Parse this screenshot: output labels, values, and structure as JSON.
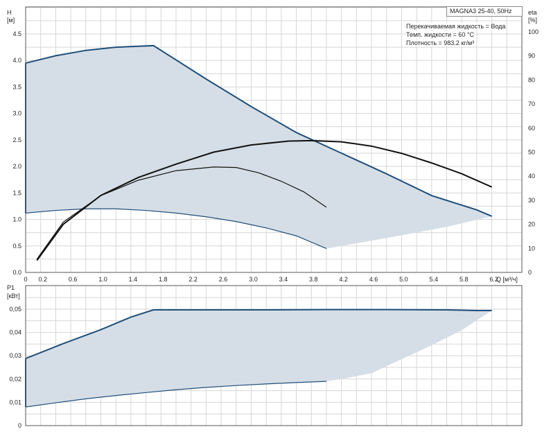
{
  "chart_data": [
    {
      "type": "line",
      "title": "MAGNA3 25-40, 50Hz",
      "xlabel": "Q [м³/ч]",
      "ylabel": "H [м]",
      "y2label": "eta [%]",
      "xlim": [
        0,
        6.6
      ],
      "ylim": [
        0,
        5.5
      ],
      "y2lim": [
        0,
        110
      ],
      "x_ticks": [
        "0",
        "0.2",
        "0.6",
        "1.0",
        "1.4",
        "1.8",
        "2.2",
        "2.6",
        "3.0",
        "3.4",
        "3.8",
        "4.2",
        "4.6",
        "5.0",
        "5.4",
        "5.8",
        "6.2"
      ],
      "y_ticks": [
        "0.0",
        "0.5",
        "1.0",
        "1.5",
        "2.0",
        "2.5",
        "3.0",
        "3.5",
        "4.0",
        "4.5"
      ],
      "y2_ticks": [
        "0",
        "10",
        "20",
        "30",
        "40",
        "50",
        "60",
        "70",
        "80",
        "90",
        "100"
      ],
      "grid": true,
      "annotations": [
        "Перекачиваемая жидкость = Вода",
        "Темп. жидкости = 60 °C",
        "Плотность = 983.2 кг/м³"
      ],
      "series": [
        {
          "kind": "area",
          "color": "#d5dee6",
          "edge_color": "#1f4e79",
          "upper": {
            "x": [
              0,
              0.4,
              0.8,
              1.2,
              1.7,
              2.4,
              3.0,
              3.6,
              4.2,
              4.8,
              5.4,
              6.0,
              6.2
            ],
            "y": [
              3.95,
              4.09,
              4.19,
              4.25,
              4.28,
              3.65,
              3.13,
              2.64,
              2.25,
              1.86,
              1.45,
              1.18,
              1.06
            ]
          },
          "lower": {
            "x": [
              0,
              0.4,
              0.8,
              1.2,
              1.6,
              2.0,
              2.4,
              2.8,
              3.2,
              3.6,
              4.0,
              4.2,
              4.6,
              5.0,
              5.6,
              6.2
            ],
            "y": [
              1.12,
              1.17,
              1.2,
              1.2,
              1.17,
              1.12,
              1.05,
              0.96,
              0.84,
              0.69,
              0.45,
              0.5,
              0.6,
              0.7,
              0.86,
              1.06
            ]
          }
        },
        {
          "kind": "line",
          "color": "#111111",
          "width": 2,
          "axis": "y2",
          "x": [
            0.15,
            0.5,
            1.0,
            1.5,
            2.0,
            2.5,
            3.0,
            3.5,
            3.8,
            4.2,
            4.6,
            5.0,
            5.4,
            5.8,
            6.2
          ],
          "y": [
            5,
            20,
            32,
            39.5,
            45,
            50,
            53,
            54.6,
            54.8,
            54.3,
            52.5,
            49.5,
            45.5,
            41,
            35.5
          ]
        },
        {
          "kind": "line",
          "color": "#111111",
          "width": 1.2,
          "axis": "y",
          "x": [
            0.15,
            0.5,
            1.0,
            1.5,
            2.0,
            2.5,
            2.8,
            3.1,
            3.4,
            3.7,
            4.0
          ],
          "y": [
            0.25,
            0.95,
            1.45,
            1.74,
            1.92,
            1.99,
            1.98,
            1.88,
            1.72,
            1.52,
            1.23
          ]
        }
      ]
    },
    {
      "type": "area",
      "xlabel": "",
      "ylabel": "P1 [кВт]",
      "xlim": [
        0,
        6.6
      ],
      "ylim": [
        0,
        0.055
      ],
      "y_ticks": [
        "0",
        "0,01",
        "0,02",
        "0,03",
        "0,04",
        "0,05"
      ],
      "grid": true,
      "series": [
        {
          "color": "#d5dee6",
          "edge_color": "#1f4e79",
          "upper": {
            "x": [
              0,
              0.5,
              1.0,
              1.4,
              1.7,
              2.4,
              3.2,
              4.0,
              4.8,
              5.6,
              6.0,
              6.2
            ],
            "y": [
              0.0288,
              0.0352,
              0.0412,
              0.0466,
              0.0497,
              0.0497,
              0.0497,
              0.0498,
              0.0498,
              0.0497,
              0.0494,
              0.0494
            ]
          },
          "lower": {
            "x": [
              0,
              0.4,
              0.8,
              1.2,
              1.6,
              2.0,
              2.4,
              2.8,
              3.2,
              3.6,
              4.0,
              4.2,
              4.6,
              5.0,
              5.4,
              5.8,
              6.2
            ],
            "y": [
              0.008,
              0.0098,
              0.0115,
              0.0129,
              0.0142,
              0.0154,
              0.0164,
              0.0172,
              0.0179,
              0.0185,
              0.019,
              0.02,
              0.0225,
              0.0285,
              0.0345,
              0.041,
              0.0494
            ]
          }
        }
      ]
    }
  ]
}
